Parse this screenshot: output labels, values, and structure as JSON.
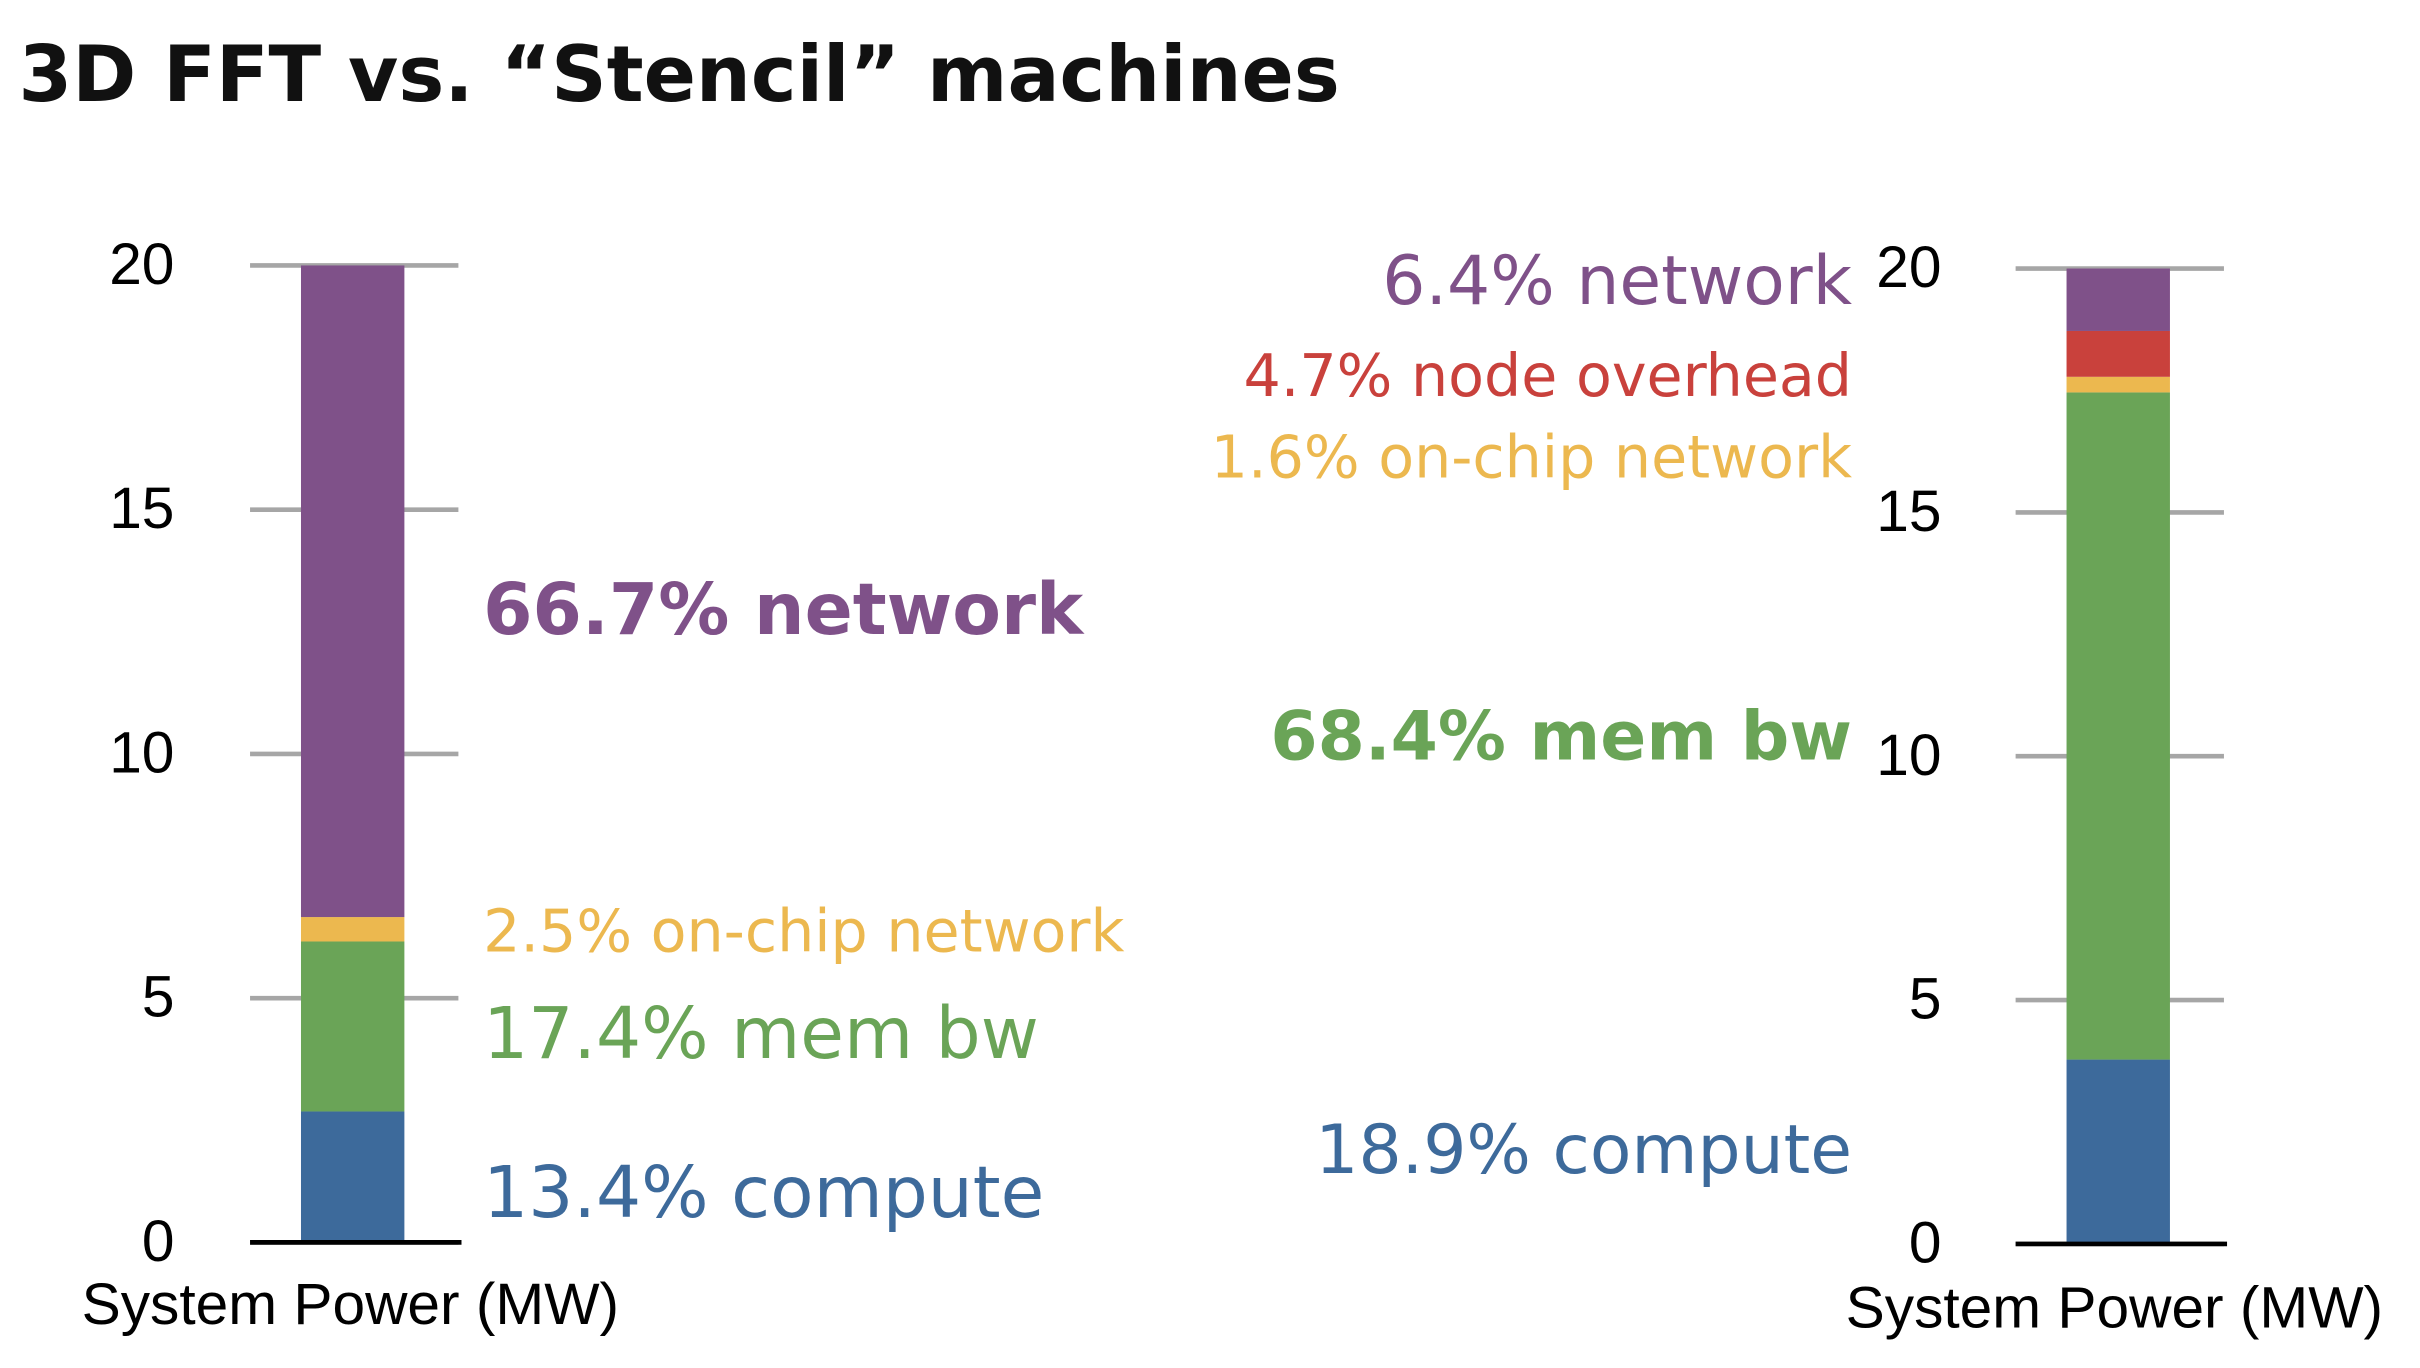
{
  "title": "3D FFT vs. “Stencil” machines",
  "chart_data": [
    {
      "type": "stacked_bar",
      "ylabel": "System Power (MW)",
      "ylim": [
        0,
        20
      ],
      "yticks": [
        0,
        5,
        10,
        15,
        20
      ],
      "series": [
        {
          "name": "13.4% compute",
          "color": "#3d6a9b",
          "values": [
            2.68
          ]
        },
        {
          "name": "17.4% mem bw",
          "color": "#6aa457",
          "values": [
            3.48
          ]
        },
        {
          "name": "2.5% on-chip network",
          "color": "#ecb84f",
          "values": [
            0.5
          ]
        },
        {
          "name": "66.7% network",
          "color": "#7f5189",
          "values": [
            13.34
          ]
        }
      ]
    },
    {
      "type": "stacked_bar",
      "ylabel": "System Power (MW)",
      "ylim": [
        0,
        20
      ],
      "yticks": [
        0,
        5,
        10,
        15,
        20
      ],
      "series": [
        {
          "name": "18.9% compute",
          "color": "#3d6a9b",
          "values": [
            3.78
          ]
        },
        {
          "name": "68.4% mem bw",
          "color": "#6aa457",
          "values": [
            13.68
          ]
        },
        {
          "name": "1.6% on-chip network",
          "color": "#ecb84f",
          "values": [
            0.32
          ]
        },
        {
          "name": "4.7% node overhead",
          "color": "#c9413c",
          "values": [
            0.94
          ]
        },
        {
          "name": "6.4% network",
          "color": "#7f5189",
          "values": [
            1.28
          ]
        }
      ]
    }
  ]
}
